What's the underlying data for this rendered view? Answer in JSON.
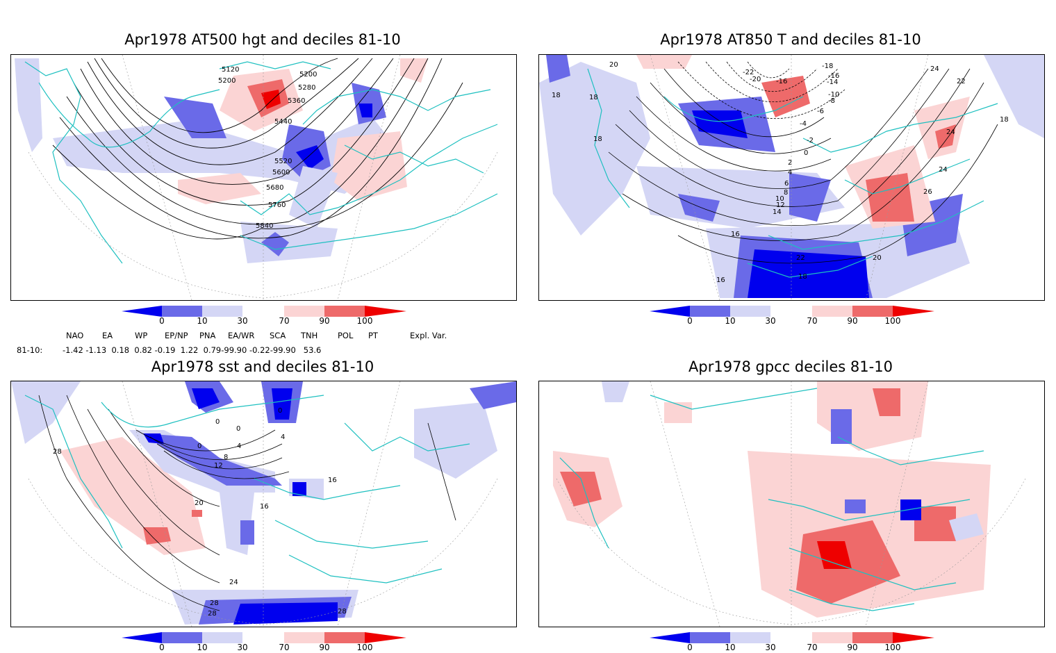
{
  "panels": [
    {
      "id": "hgt500",
      "title": "Apr1978 AT500 hgt and deciles 81-10",
      "contours": [
        "5120",
        "5200",
        "5200",
        "5280",
        "5360",
        "5440",
        "5520",
        "5600",
        "5680",
        "5760",
        "5840"
      ]
    },
    {
      "id": "t850",
      "title": "Apr1978 AT850 T and deciles 81-10",
      "contours": [
        "20",
        "18",
        "18",
        "18",
        "-22",
        "-20",
        "-18",
        "-16",
        "-14",
        "-16",
        "-10",
        "-8",
        "-6",
        "-4",
        "-2",
        "0",
        "2",
        "4",
        "6",
        "8",
        "10",
        "12",
        "14",
        "16",
        "16",
        "18",
        "20",
        "22",
        "24",
        "24",
        "22",
        "18",
        "24",
        "26"
      ]
    },
    {
      "id": "sst",
      "title": "Apr1978 sst and deciles 81-10",
      "contours": [
        "0",
        "0",
        "0",
        "0",
        "4",
        "4",
        "8",
        "12",
        "16",
        "20",
        "24",
        "28",
        "28",
        "28",
        "28",
        "16"
      ]
    },
    {
      "id": "gpcc",
      "title": "Apr1978 gpcc deciles 81-10",
      "contours": []
    }
  ],
  "colorbar": {
    "labels": [
      "0",
      "10",
      "30",
      "70",
      "90",
      "100"
    ],
    "colors": {
      "dark_blue": "#0000ee",
      "mid_blue": "#6a6ae8",
      "light_blue": "#d4d6f5",
      "white": "#ffffff",
      "light_red": "#fbd4d4",
      "mid_red": "#ee6a6a",
      "dark_red": "#ee0000"
    }
  },
  "teleconnections": {
    "headers": [
      "NAO",
      "EA",
      "WP",
      "EP/NP",
      "PNA",
      "EA/WR",
      "SCA",
      "TNH",
      "POL",
      "PT",
      "Expl. Var."
    ],
    "row_label": "81-10:",
    "values": "-1.42 -1.13  0.18  0.82 -0.19  1.22  0.79-99.90 -0.22-99.90   53.6"
  },
  "map_colors": {
    "coast": "#1ec0c0",
    "contour": "#000000",
    "grid": "#999999"
  }
}
